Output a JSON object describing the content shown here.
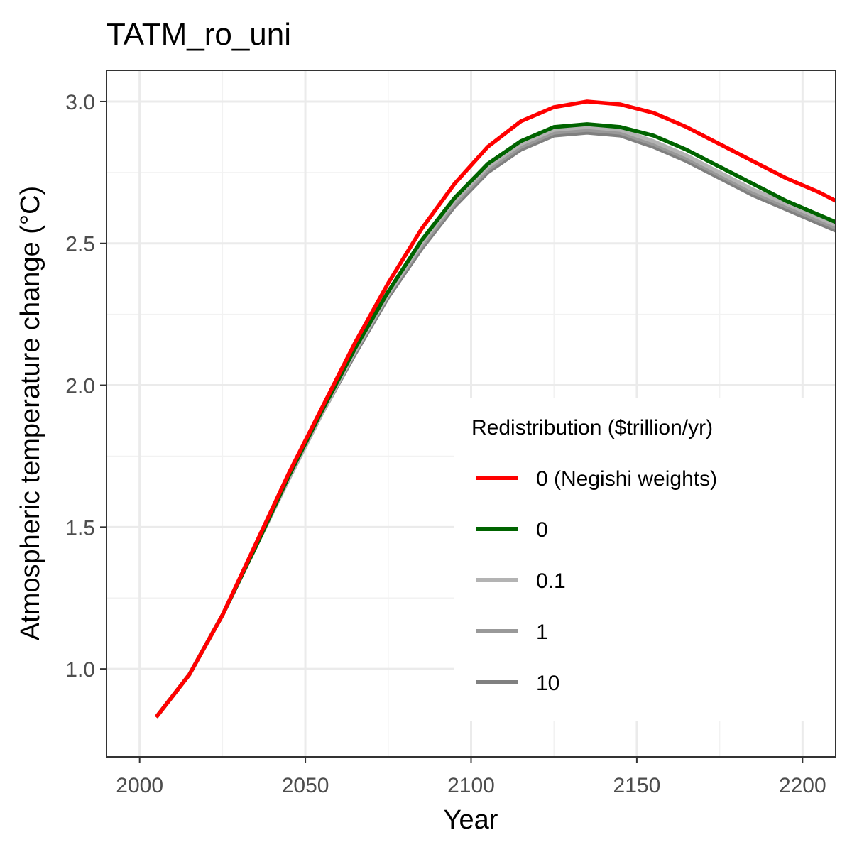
{
  "chart_data": {
    "type": "line",
    "title": "TATM_ro_uni",
    "xlabel": "Year",
    "ylabel": "Atmospheric temperature change (°C)",
    "xlim": [
      1990,
      2210
    ],
    "ylim": [
      0.69,
      3.11
    ],
    "x_ticks": [
      2000,
      2050,
      2100,
      2150,
      2200
    ],
    "x_tick_labels": [
      "2000",
      "2050",
      "2100",
      "2150",
      "2200"
    ],
    "y_ticks": [
      1.0,
      1.5,
      2.0,
      2.5,
      3.0
    ],
    "y_tick_labels": [
      "1.0",
      "1.5",
      "2.0",
      "2.5",
      "3.0"
    ],
    "grid": true,
    "legend": {
      "title": "Redistribution ($trillion/yr)",
      "placement": "bottom-right inside"
    },
    "x": [
      2005,
      2015,
      2025,
      2035,
      2045,
      2055,
      2065,
      2075,
      2085,
      2095,
      2105,
      2115,
      2125,
      2135,
      2145,
      2155,
      2165,
      2175,
      2185,
      2195,
      2205,
      2215
    ],
    "series": [
      {
        "name": "10",
        "color": "#808080",
        "values": [
          0.83,
          0.98,
          1.19,
          1.43,
          1.67,
          1.9,
          2.11,
          2.31,
          2.48,
          2.63,
          2.75,
          2.83,
          2.88,
          2.89,
          2.88,
          2.84,
          2.79,
          2.73,
          2.67,
          2.62,
          2.57,
          2.52
        ]
      },
      {
        "name": "1",
        "color": "#999999",
        "values": [
          0.83,
          0.98,
          1.19,
          1.43,
          1.67,
          1.9,
          2.12,
          2.32,
          2.49,
          2.64,
          2.76,
          2.84,
          2.89,
          2.9,
          2.89,
          2.85,
          2.8,
          2.74,
          2.68,
          2.63,
          2.58,
          2.53
        ]
      },
      {
        "name": "0.1",
        "color": "#b3b3b3",
        "values": [
          0.83,
          0.98,
          1.19,
          1.43,
          1.67,
          1.9,
          2.12,
          2.32,
          2.5,
          2.65,
          2.77,
          2.85,
          2.9,
          2.91,
          2.9,
          2.86,
          2.81,
          2.75,
          2.69,
          2.64,
          2.59,
          2.54
        ]
      },
      {
        "name": "0",
        "color": "#006400",
        "values": [
          0.83,
          0.98,
          1.19,
          1.43,
          1.68,
          1.91,
          2.13,
          2.33,
          2.51,
          2.66,
          2.78,
          2.86,
          2.91,
          2.92,
          2.91,
          2.88,
          2.83,
          2.77,
          2.71,
          2.65,
          2.6,
          2.55
        ]
      },
      {
        "name": "0 (Negishi weights)",
        "color": "#ff0000",
        "values": [
          0.83,
          0.98,
          1.19,
          1.44,
          1.69,
          1.92,
          2.15,
          2.36,
          2.55,
          2.71,
          2.84,
          2.93,
          2.98,
          3.0,
          2.99,
          2.96,
          2.91,
          2.85,
          2.79,
          2.73,
          2.68,
          2.62
        ]
      }
    ],
    "legend_order": [
      "0 (Negishi weights)",
      "0",
      "0.1",
      "1",
      "10"
    ]
  }
}
